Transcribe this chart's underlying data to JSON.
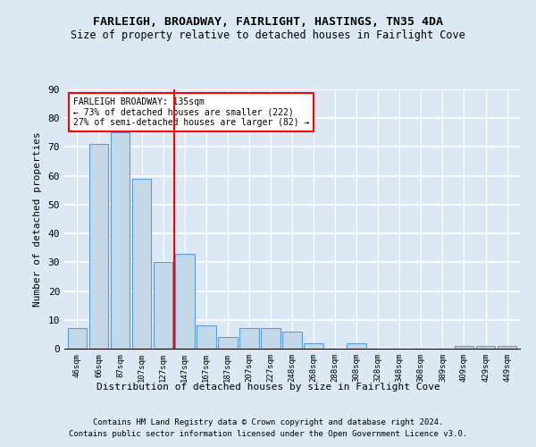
{
  "title1": "FARLEIGH, BROADWAY, FAIRLIGHT, HASTINGS, TN35 4DA",
  "title2": "Size of property relative to detached houses in Fairlight Cove",
  "xlabel": "Distribution of detached houses by size in Fairlight Cove",
  "ylabel": "Number of detached properties",
  "categories": [
    "46sqm",
    "66sqm",
    "87sqm",
    "107sqm",
    "127sqm",
    "147sqm",
    "167sqm",
    "187sqm",
    "207sqm",
    "227sqm",
    "248sqm",
    "268sqm",
    "288sqm",
    "308sqm",
    "328sqm",
    "348sqm",
    "368sqm",
    "389sqm",
    "409sqm",
    "429sqm",
    "449sqm"
  ],
  "values": [
    7,
    71,
    75,
    59,
    30,
    33,
    8,
    4,
    7,
    7,
    6,
    2,
    0,
    2,
    0,
    0,
    0,
    0,
    1,
    1,
    1
  ],
  "bar_color": "#c5d8e8",
  "bar_edge_color": "#5b9bd5",
  "red_line_x": 4.5,
  "annotation_title": "FARLEIGH BROADWAY: 135sqm",
  "annotation_line1": "← 73% of detached houses are smaller (222)",
  "annotation_line2": "27% of semi-detached houses are larger (82) →",
  "ylim": [
    0,
    90
  ],
  "yticks": [
    0,
    10,
    20,
    30,
    40,
    50,
    60,
    70,
    80,
    90
  ],
  "footer1": "Contains HM Land Registry data © Crown copyright and database right 2024.",
  "footer2": "Contains public sector information licensed under the Open Government Licence v3.0.",
  "bg_color": "#dce9f5",
  "plot_bg_color": "#dce9f5",
  "grid_color": "#ffffff"
}
